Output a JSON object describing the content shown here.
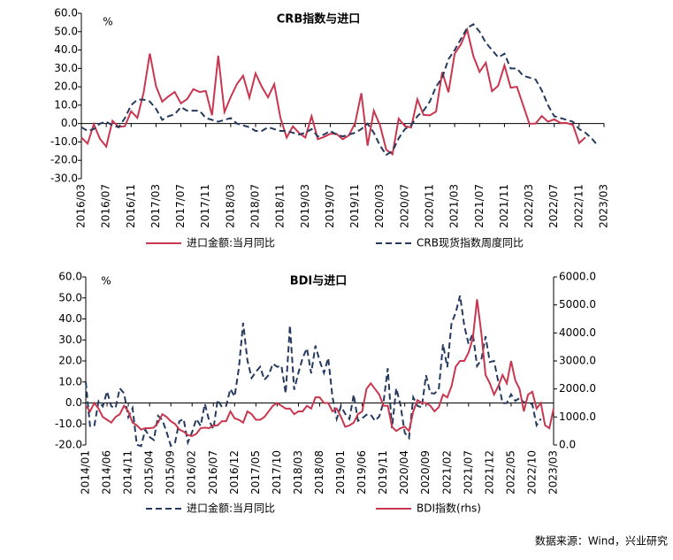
{
  "chart_data": [
    {
      "type": "line",
      "title": "CRB指数与进口",
      "annotation": "%",
      "categories": [
        "2016/03",
        null,
        null,
        null,
        "2016/07",
        null,
        null,
        null,
        "2016/11",
        null,
        null,
        null,
        "2017/03",
        null,
        null,
        null,
        "2017/07",
        null,
        null,
        null,
        "2017/11",
        null,
        null,
        null,
        "2018/03",
        null,
        null,
        null,
        "2018/07",
        null,
        null,
        null,
        "2018/11",
        null,
        null,
        null,
        "2019/03",
        null,
        null,
        null,
        "2019/07",
        null,
        null,
        null,
        "2019/11",
        null,
        null,
        null,
        "2020/03",
        null,
        null,
        null,
        "2020/07",
        null,
        null,
        null,
        "2020/11",
        null,
        null,
        null,
        "2021/03",
        null,
        null,
        null,
        "2021/07",
        null,
        null,
        null,
        "2021/11",
        null,
        null,
        null,
        "2022/03",
        null,
        null,
        null,
        "2022/07",
        null,
        null,
        null,
        "2022/11",
        null,
        null,
        null,
        "2023/03"
      ],
      "series": [
        {
          "name": "进口金额:当月同比",
          "color": "#c8374f",
          "line_style": "solid",
          "values": [
            -7.6,
            -10.9,
            -0.4,
            -8.4,
            -12.5,
            1.5,
            -1.9,
            -1.4,
            6.7,
            3.1,
            16.7,
            38.1,
            20.3,
            11.9,
            14.8,
            17.2,
            11.0,
            13.3,
            18.7,
            17.2,
            17.7,
            4.5,
            36.9,
            6.3,
            14.4,
            21.5,
            26.0,
            14.1,
            27.3,
            20.0,
            14.3,
            21.4,
            3.0,
            -7.6,
            -1.5,
            -5.2,
            -7.6,
            4.0,
            -8.5,
            -7.3,
            -5.6,
            -5.6,
            -8.5,
            -6.4,
            0.3,
            16.5,
            -12,
            7,
            -1,
            -14.2,
            -16.7,
            2.7,
            -1.4,
            -2.1,
            13.2,
            4.7,
            4.5,
            6.5,
            28,
            17,
            38,
            43.1,
            51.1,
            36.7,
            28.1,
            33.1,
            17.6,
            20.6,
            31.7,
            19.5,
            20,
            10,
            -0.1,
            0,
            4.1,
            1.0,
            2.3,
            0.3,
            0.3,
            -0.7,
            -10.6,
            -7.5,
            null,
            null,
            null
          ]
        },
        {
          "name": "CRB现货指数周度同比",
          "color": "#253a5e",
          "line_style": "dashed",
          "values": [
            -2,
            -4,
            -3,
            0,
            1,
            -1,
            -2,
            3,
            10,
            13,
            13,
            12,
            8,
            2,
            4,
            5,
            9,
            7,
            7,
            7,
            3,
            2,
            1,
            2,
            3,
            0,
            -1,
            -2,
            -4,
            -4,
            -2,
            -3,
            -4,
            -4,
            -5,
            -6,
            -5,
            -3,
            -7,
            -6,
            -4,
            -6,
            -7,
            -6,
            -5,
            -3,
            0,
            -5,
            -12,
            -17,
            -15,
            -8,
            -3,
            -1,
            4,
            7,
            12,
            20,
            25,
            35,
            40,
            46,
            52,
            54,
            50,
            44,
            40,
            36,
            38,
            30,
            30,
            26,
            25,
            24,
            18,
            10,
            4,
            3,
            2,
            1,
            -3,
            -5,
            -8,
            -12,
            null
          ]
        }
      ],
      "ylim": [
        -30,
        60
      ],
      "yticks": [
        {
          "value": -30,
          "label": "-30.0"
        },
        {
          "value": -20,
          "label": "-20.0"
        },
        {
          "value": -10,
          "label": "-10.0"
        },
        {
          "value": 0,
          "label": "0.0"
        },
        {
          "value": 10,
          "label": "10.0"
        },
        {
          "value": 20,
          "label": "20.0"
        },
        {
          "value": 30,
          "label": "30.0"
        },
        {
          "value": 40,
          "label": "40.0"
        },
        {
          "value": 50,
          "label": "50.0"
        },
        {
          "value": 60,
          "label": "60.0"
        }
      ]
    },
    {
      "type": "line",
      "title": "BDI与进口",
      "annotation": "%",
      "categories": [
        "2014/01",
        null,
        null,
        null,
        null,
        "2014/06",
        null,
        null,
        null,
        null,
        "2014/11",
        null,
        null,
        null,
        null,
        "2015/04",
        null,
        null,
        null,
        null,
        "2015/09",
        null,
        null,
        null,
        null,
        "2016/02",
        null,
        null,
        null,
        null,
        "2016/07",
        null,
        null,
        null,
        null,
        "2016/12",
        null,
        null,
        null,
        null,
        "2017/05",
        null,
        null,
        null,
        null,
        "2017/10",
        null,
        null,
        null,
        null,
        "2018/03",
        null,
        null,
        null,
        null,
        "2018/08",
        null,
        null,
        null,
        null,
        "2019/01",
        null,
        null,
        null,
        null,
        "2019/06",
        null,
        null,
        null,
        null,
        "2019/11",
        null,
        null,
        null,
        null,
        "2020/04",
        null,
        null,
        null,
        null,
        "2020/09",
        null,
        null,
        null,
        null,
        "2021/02",
        null,
        null,
        null,
        null,
        "2021/07",
        null,
        null,
        null,
        null,
        "2021/12",
        null,
        null,
        null,
        null,
        "2022/05",
        null,
        null,
        null,
        null,
        "2022/10",
        null,
        null,
        null,
        null,
        "2023/03"
      ],
      "series": [
        {
          "name": "进口金额:当月同比",
          "color": "#253a5e",
          "line_style": "dashed",
          "values": [
            10,
            -11,
            -11,
            0.8,
            -1.6,
            5.5,
            -1.6,
            -2.4,
            7,
            4.6,
            -6.7,
            -2.4,
            -19.9,
            -20.5,
            -12.7,
            -16.2,
            -17.6,
            -6.1,
            -8.1,
            -13.8,
            -20.4,
            -18.8,
            -8.7,
            -7.6,
            -18.8,
            -13.8,
            -7.6,
            -10.9,
            -0.4,
            -8.4,
            -12.5,
            1.5,
            -1.9,
            -1.4,
            6.7,
            3.1,
            16.7,
            38.1,
            20.3,
            11.9,
            14.8,
            17.2,
            11.0,
            13.3,
            18.7,
            17.2,
            17.7,
            4.5,
            36.9,
            6.3,
            14.4,
            21.5,
            26.0,
            14.1,
            27.3,
            20.0,
            14.3,
            21.4,
            3.0,
            -7.6,
            -1.5,
            -5.2,
            -7.6,
            4.0,
            -8.5,
            -7.3,
            -5.6,
            -5.6,
            -8.5,
            -6.4,
            0.3,
            16.5,
            -12,
            7,
            -1,
            -14.2,
            -16.7,
            2.7,
            -1.4,
            -2.1,
            13.2,
            4.7,
            4.5,
            6.5,
            28,
            17,
            38,
            43.1,
            51.1,
            36.7,
            28.1,
            33.1,
            17.6,
            20.6,
            31.7,
            19.5,
            20,
            10,
            -0.1,
            0,
            4.1,
            1.0,
            2.3,
            0.3,
            0.3,
            -0.7,
            -10.6,
            -7.5,
            null,
            null,
            null
          ]
        },
        {
          "name": "BDI指数(rhs)",
          "color": "#c8374f",
          "line_style": "solid",
          "axis": "y2",
          "values": [
            1400,
            1200,
            1500,
            1300,
            1000,
            900,
            800,
            1000,
            1100,
            1400,
            1200,
            800,
            700,
            550,
            600,
            600,
            620,
            800,
            1100,
            1000,
            850,
            750,
            550,
            480,
            350,
            320,
            400,
            600,
            620,
            600,
            700,
            700,
            850,
            850,
            1200,
            950,
            900,
            800,
            1200,
            1100,
            900,
            900,
            1000,
            1200,
            1400,
            1500,
            1400,
            1300,
            1300,
            1100,
            1200,
            1200,
            1400,
            1300,
            1700,
            1700,
            1500,
            1500,
            1200,
            1300,
            1000,
            650,
            700,
            800,
            1100,
            1200,
            2000,
            2200,
            2000,
            1800,
            1400,
            1400,
            650,
            500,
            600,
            650,
            500,
            1200,
            1600,
            1500,
            1500,
            1400,
            1200,
            1350,
            1800,
            1700,
            2100,
            2800,
            3000,
            3000,
            3300,
            3800,
            5200,
            4000,
            2500,
            2200,
            1800,
            2100,
            2500,
            2200,
            3000,
            2300,
            2000,
            1200,
            1800,
            1900,
            1300,
            1500,
            700,
            600,
            1300
          ]
        }
      ],
      "ylim": [
        -20,
        60
      ],
      "yticks": [
        {
          "value": -20,
          "label": "-20.0"
        },
        {
          "value": -10,
          "label": "-10.0"
        },
        {
          "value": 0,
          "label": "0.0"
        },
        {
          "value": 10,
          "label": "10.0"
        },
        {
          "value": 20,
          "label": "20.0"
        },
        {
          "value": 30,
          "label": "30.0"
        },
        {
          "value": 40,
          "label": "40.0"
        },
        {
          "value": 50,
          "label": "50.0"
        },
        {
          "value": 60,
          "label": "60.0"
        }
      ],
      "y2lim": [
        0,
        6000
      ],
      "y2ticks": [
        {
          "value": 0,
          "label": "0.0"
        },
        {
          "value": 1000,
          "label": "1000.0"
        },
        {
          "value": 2000,
          "label": "2000.0"
        },
        {
          "value": 3000,
          "label": "3000.0"
        },
        {
          "value": 4000,
          "label": "4000.0"
        },
        {
          "value": 5000,
          "label": "5000.0"
        },
        {
          "value": 6000,
          "label": "6000.0"
        }
      ]
    }
  ],
  "source": "数据来源：Wind，兴业研究"
}
